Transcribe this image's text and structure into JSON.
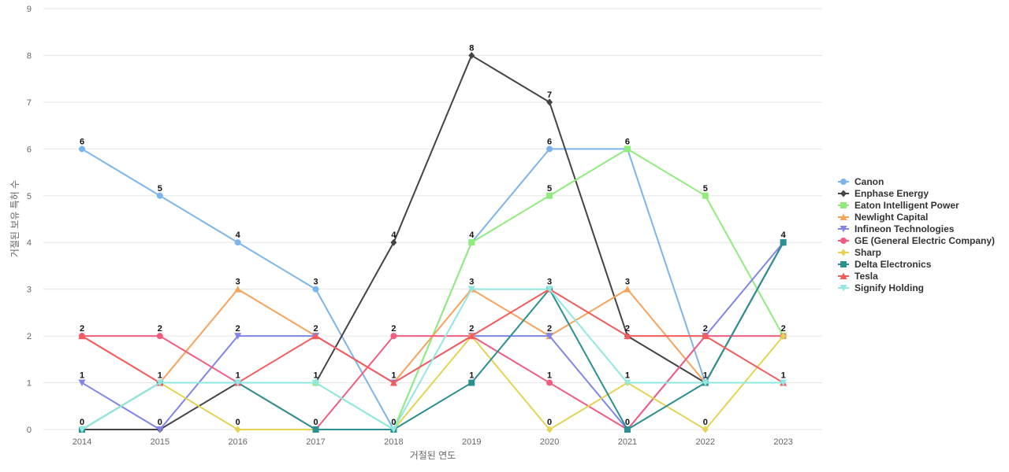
{
  "chart_data": {
    "type": "line",
    "title": "",
    "xlabel": "거절된 연도",
    "ylabel": "거절된 보유 특허 수",
    "categories": [
      "2014",
      "2015",
      "2016",
      "2017",
      "2018",
      "2019",
      "2020",
      "2021",
      "2022",
      "2023"
    ],
    "ylim": [
      0,
      9
    ],
    "yticks": [
      0,
      1,
      2,
      3,
      4,
      5,
      6,
      7,
      8,
      9
    ],
    "grid": true,
    "legend_position": "right",
    "series": [
      {
        "name": "Canon",
        "color": "#7cb5ec",
        "marker": "circle",
        "values": [
          6,
          5,
          4,
          3,
          0,
          4,
          6,
          6,
          1,
          4
        ]
      },
      {
        "name": "Enphase Energy",
        "color": "#434348",
        "marker": "diamond",
        "values": [
          0,
          0,
          1,
          1,
          4,
          8,
          7,
          2,
          1,
          4
        ]
      },
      {
        "name": "Eaton Intelligent Power",
        "color": "#90ed7d",
        "marker": "square",
        "values": [
          0,
          1,
          1,
          1,
          0,
          4,
          5,
          6,
          5,
          2
        ]
      },
      {
        "name": "Newlight Capital",
        "color": "#f7a35c",
        "marker": "triangle",
        "values": [
          2,
          1,
          3,
          2,
          1,
          3,
          2,
          3,
          1,
          1
        ]
      },
      {
        "name": "Infineon Technologies",
        "color": "#8085e9",
        "marker": "triangle-down",
        "values": [
          1,
          0,
          2,
          2,
          1,
          2,
          2,
          0,
          2,
          4
        ]
      },
      {
        "name": "GE (General Electric Company)",
        "color": "#f15c80",
        "marker": "circle",
        "values": [
          2,
          2,
          1,
          0,
          2,
          2,
          1,
          0,
          2,
          2
        ]
      },
      {
        "name": "Sharp",
        "color": "#e4d354",
        "marker": "diamond",
        "values": [
          0,
          1,
          0,
          0,
          0,
          2,
          0,
          1,
          0,
          2
        ]
      },
      {
        "name": "Delta Electronics",
        "color": "#2b908f",
        "marker": "square",
        "values": [
          0,
          1,
          1,
          0,
          0,
          1,
          3,
          0,
          1,
          4
        ]
      },
      {
        "name": "Tesla",
        "color": "#f45b5b",
        "marker": "triangle",
        "values": [
          2,
          1,
          1,
          2,
          1,
          2,
          3,
          2,
          2,
          1
        ]
      },
      {
        "name": "Signify Holding",
        "color": "#91e8e1",
        "marker": "triangle-down",
        "values": [
          0,
          1,
          1,
          1,
          0,
          3,
          3,
          1,
          1,
          1
        ]
      }
    ],
    "data_labels": [
      {
        "x": "2014",
        "labels": [
          {
            "text": "6",
            "value": 6
          },
          {
            "text": "2",
            "value": 2
          },
          {
            "text": "1",
            "value": 1
          },
          {
            "text": "0",
            "value": 0
          }
        ]
      },
      {
        "x": "2015",
        "labels": [
          {
            "text": "5",
            "value": 5
          },
          {
            "text": "2",
            "value": 2
          },
          {
            "text": "1",
            "value": 1
          },
          {
            "text": "0",
            "value": 0
          }
        ]
      },
      {
        "x": "2016",
        "labels": [
          {
            "text": "4",
            "value": 4
          },
          {
            "text": "3",
            "value": 3
          },
          {
            "text": "2",
            "value": 2
          },
          {
            "text": "1",
            "value": 1
          },
          {
            "text": "0",
            "value": 0
          }
        ]
      },
      {
        "x": "2017",
        "labels": [
          {
            "text": "3",
            "value": 3
          },
          {
            "text": "2",
            "value": 2
          },
          {
            "text": "1",
            "value": 1
          },
          {
            "text": "0",
            "value": 0
          }
        ]
      },
      {
        "x": "2018",
        "labels": [
          {
            "text": "4",
            "value": 4
          },
          {
            "text": "2",
            "value": 2
          },
          {
            "text": "1",
            "value": 1
          },
          {
            "text": "0",
            "value": 0
          }
        ]
      },
      {
        "x": "2019",
        "labels": [
          {
            "text": "8",
            "value": 8
          },
          {
            "text": "4",
            "value": 4
          },
          {
            "text": "3",
            "value": 3
          },
          {
            "text": "2",
            "value": 2
          },
          {
            "text": "1",
            "value": 1
          }
        ]
      },
      {
        "x": "2020",
        "labels": [
          {
            "text": "7",
            "value": 7
          },
          {
            "text": "6",
            "value": 6
          },
          {
            "text": "5",
            "value": 5
          },
          {
            "text": "3",
            "value": 3
          },
          {
            "text": "2",
            "value": 2
          },
          {
            "text": "1",
            "value": 1
          },
          {
            "text": "0",
            "value": 0
          }
        ]
      },
      {
        "x": "2021",
        "labels": [
          {
            "text": "6",
            "value": 6
          },
          {
            "text": "3",
            "value": 3
          },
          {
            "text": "2",
            "value": 2
          },
          {
            "text": "1",
            "value": 1
          },
          {
            "text": "0",
            "value": 0
          }
        ]
      },
      {
        "x": "2022",
        "labels": [
          {
            "text": "5",
            "value": 5
          },
          {
            "text": "2",
            "value": 2
          },
          {
            "text": "1",
            "value": 1
          },
          {
            "text": "0",
            "value": 0
          }
        ]
      },
      {
        "x": "2023",
        "labels": [
          {
            "text": "4",
            "value": 4
          },
          {
            "text": "2",
            "value": 2
          },
          {
            "text": "1",
            "value": 1
          }
        ]
      }
    ]
  }
}
